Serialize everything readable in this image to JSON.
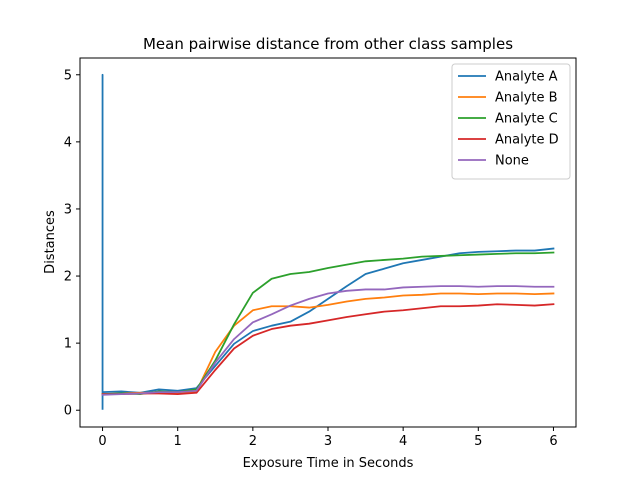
{
  "chart_data": {
    "type": "line",
    "title": "Mean pairwise distance from other class samples",
    "xlabel": "Exposure Time in Seconds",
    "ylabel": "Distances",
    "xlim": [
      -0.3,
      6.3
    ],
    "ylim": [
      -0.25,
      5.25
    ],
    "xticks": [
      0,
      1,
      2,
      3,
      4,
      5,
      6
    ],
    "yticks": [
      0,
      1,
      2,
      3,
      4,
      5
    ],
    "legend_position": "top-right",
    "grid": false,
    "x": [
      0,
      0.25,
      0.5,
      0.75,
      1.0,
      1.25,
      1.5,
      1.75,
      2.0,
      2.25,
      2.5,
      2.75,
      3.0,
      3.25,
      3.5,
      3.75,
      4.0,
      4.25,
      4.5,
      4.75,
      5.0,
      5.25,
      5.5,
      5.75,
      6.0
    ],
    "series": [
      {
        "name": "Analyte A",
        "color": "#1f77b4",
        "spike": [
          0.02,
          5.0
        ],
        "values": [
          0.27,
          0.28,
          0.26,
          0.31,
          0.29,
          0.33,
          0.66,
          0.99,
          1.18,
          1.26,
          1.32,
          1.47,
          1.66,
          1.85,
          2.03,
          2.11,
          2.19,
          2.24,
          2.29,
          2.34,
          2.36,
          2.37,
          2.38,
          2.38,
          2.41
        ]
      },
      {
        "name": "Analyte B",
        "color": "#ff7f0e",
        "values": [
          0.24,
          0.25,
          0.26,
          0.26,
          0.26,
          0.28,
          0.87,
          1.26,
          1.49,
          1.55,
          1.55,
          1.53,
          1.57,
          1.62,
          1.66,
          1.68,
          1.71,
          1.72,
          1.74,
          1.74,
          1.73,
          1.74,
          1.74,
          1.73,
          1.74
        ]
      },
      {
        "name": "Analyte C",
        "color": "#2ca02c",
        "values": [
          0.24,
          0.25,
          0.24,
          0.28,
          0.27,
          0.31,
          0.74,
          1.28,
          1.75,
          1.96,
          2.03,
          2.06,
          2.12,
          2.17,
          2.22,
          2.24,
          2.26,
          2.29,
          2.3,
          2.31,
          2.32,
          2.33,
          2.34,
          2.34,
          2.35
        ]
      },
      {
        "name": "Analyte D",
        "color": "#d62728",
        "values": [
          0.24,
          0.24,
          0.25,
          0.25,
          0.24,
          0.26,
          0.6,
          0.92,
          1.11,
          1.21,
          1.26,
          1.29,
          1.34,
          1.39,
          1.43,
          1.47,
          1.49,
          1.52,
          1.55,
          1.55,
          1.56,
          1.58,
          1.57,
          1.56,
          1.58
        ]
      },
      {
        "name": "None",
        "color": "#9467bd",
        "values": [
          0.23,
          0.24,
          0.25,
          0.27,
          0.27,
          0.29,
          0.71,
          1.06,
          1.31,
          1.43,
          1.56,
          1.66,
          1.74,
          1.78,
          1.8,
          1.8,
          1.83,
          1.84,
          1.85,
          1.85,
          1.84,
          1.85,
          1.85,
          1.84,
          1.84
        ]
      }
    ]
  }
}
